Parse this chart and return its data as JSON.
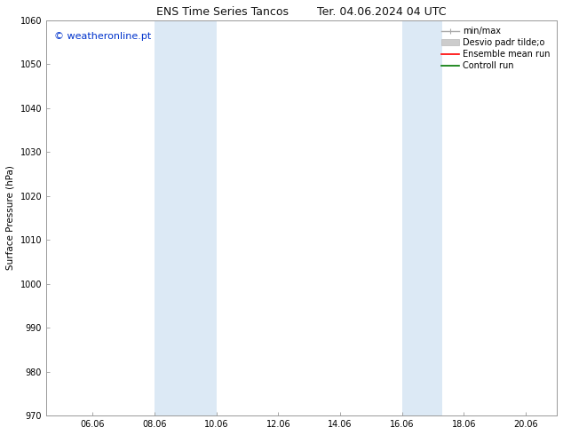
{
  "title_left": "ENS Time Series Tancos",
  "title_right": "Ter. 04.06.2024 04 UTC",
  "ylabel": "Surface Pressure (hPa)",
  "ylim": [
    970,
    1060
  ],
  "yticks": [
    970,
    980,
    990,
    1000,
    1010,
    1020,
    1030,
    1040,
    1050,
    1060
  ],
  "xlim_start": 4.5,
  "xlim_end": 21.0,
  "xtick_positions": [
    6,
    8,
    10,
    12,
    14,
    16,
    18,
    20
  ],
  "xtick_labels": [
    "06.06",
    "08.06",
    "10.06",
    "12.06",
    "14.06",
    "16.06",
    "18.06",
    "20.06"
  ],
  "shade_regions": [
    {
      "x_start": 8.0,
      "x_end": 10.0
    },
    {
      "x_start": 16.0,
      "x_end": 17.3
    }
  ],
  "shade_color": "#dce9f5",
  "watermark": "© weatheronline.pt",
  "watermark_color": "#0033cc",
  "bg_color": "#ffffff",
  "spine_color": "#999999",
  "grid_color": "#dddddd",
  "title_fontsize": 9,
  "tick_fontsize": 7,
  "label_fontsize": 7.5,
  "watermark_fontsize": 8,
  "legend_fontsize": 7,
  "legend_min_max_color": "#aaaaaa",
  "legend_std_color": "#cccccc",
  "legend_ensemble_color": "#ff0000",
  "legend_control_color": "#007700"
}
